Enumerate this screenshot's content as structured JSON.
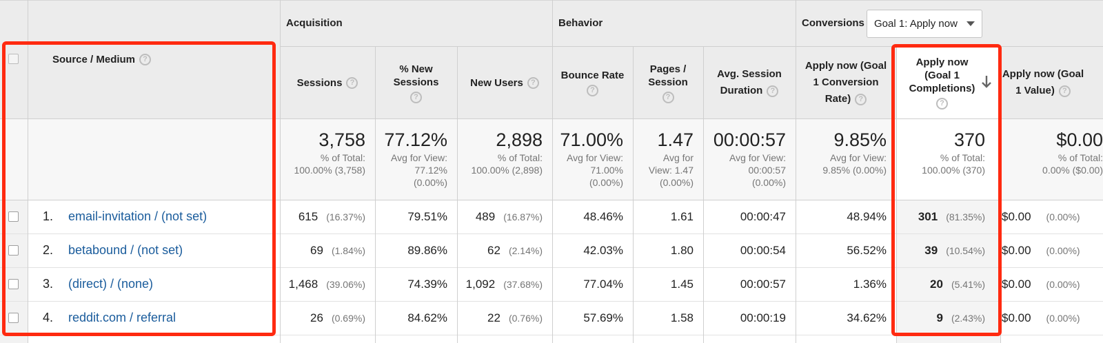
{
  "groups": {
    "acquisition": "Acquisition",
    "behavior": "Behavior",
    "conversions": "Conversions",
    "goal_select": "Goal 1: Apply now"
  },
  "columns": {
    "source_medium": "Source / Medium",
    "sessions": "Sessions",
    "pct_new_sessions": "% New Sessions",
    "new_users": "New Users",
    "bounce_rate": "Bounce Rate",
    "pages_session": "Pages / Session",
    "avg_session_duration": "Avg. Session Duration",
    "conv_rate": "Apply now (Goal 1 Conversion Rate)",
    "completions": "Apply now (Goal 1 Completions)",
    "value": "Apply now (Goal 1 Value)"
  },
  "totals": {
    "sessions": {
      "big": "3,758",
      "l1": "% of Total:",
      "l2": "100.00% (3,758)"
    },
    "pct_new": {
      "big": "77.12%",
      "l1": "Avg for View:",
      "l2": "77.12%",
      "l3": "(0.00%)"
    },
    "new_users": {
      "big": "2,898",
      "l1": "% of Total:",
      "l2": "100.00% (2,898)"
    },
    "bounce": {
      "big": "71.00%",
      "l1": "Avg for View:",
      "l2": "71.00%",
      "l3": "(0.00%)"
    },
    "pages": {
      "big": "1.47",
      "l1": "Avg for",
      "l2": "View: 1.47",
      "l3": "(0.00%)"
    },
    "duration": {
      "big": "00:00:57",
      "l1": "Avg for View:",
      "l2": "00:00:57",
      "l3": "(0.00%)"
    },
    "conv_rate": {
      "big": "9.85%",
      "l1": "Avg for View:",
      "l2": "9.85% (0.00%)"
    },
    "completions": {
      "big": "370",
      "l1": "% of Total:",
      "l2": "100.00% (370)"
    },
    "value": {
      "big": "$0.00",
      "l1": "% of Total:",
      "l2": "0.00% ($0.00)"
    }
  },
  "rows": [
    {
      "idx": "1.",
      "source": "email-invitation / (not set)",
      "sessions": "615",
      "sessions_pct": "(16.37%)",
      "pct_new": "79.51%",
      "new_users": "489",
      "new_users_pct": "(16.87%)",
      "bounce": "48.46%",
      "pages": "1.61",
      "duration": "00:00:47",
      "conv_rate": "48.94%",
      "completions": "301",
      "completions_pct": "(81.35%)",
      "value": "$0.00",
      "value_pct": "(0.00%)"
    },
    {
      "idx": "2.",
      "source": "betabound / (not set)",
      "sessions": "69",
      "sessions_pct": "(1.84%)",
      "pct_new": "89.86%",
      "new_users": "62",
      "new_users_pct": "(2.14%)",
      "bounce": "42.03%",
      "pages": "1.80",
      "duration": "00:00:54",
      "conv_rate": "56.52%",
      "completions": "39",
      "completions_pct": "(10.54%)",
      "value": "$0.00",
      "value_pct": "(0.00%)"
    },
    {
      "idx": "3.",
      "source": "(direct) / (none)",
      "sessions": "1,468",
      "sessions_pct": "(39.06%)",
      "pct_new": "74.39%",
      "new_users": "1,092",
      "new_users_pct": "(37.68%)",
      "bounce": "77.04%",
      "pages": "1.45",
      "duration": "00:00:57",
      "conv_rate": "1.36%",
      "completions": "20",
      "completions_pct": "(5.41%)",
      "value": "$0.00",
      "value_pct": "(0.00%)"
    },
    {
      "idx": "4.",
      "source": "reddit.com / referral",
      "sessions": "26",
      "sessions_pct": "(0.69%)",
      "pct_new": "84.62%",
      "new_users": "22",
      "new_users_pct": "(0.76%)",
      "bounce": "57.69%",
      "pages": "1.58",
      "duration": "00:00:19",
      "conv_rate": "34.62%",
      "completions": "9",
      "completions_pct": "(2.43%)",
      "value": "$0.00",
      "value_pct": "(0.00%)"
    }
  ],
  "colors": {
    "highlight_border": "#ff2a10",
    "link": "#1a5c9c",
    "header_bg": "#ececec"
  },
  "icons": {
    "help": "help-icon",
    "sort": "sort-descending-icon"
  }
}
